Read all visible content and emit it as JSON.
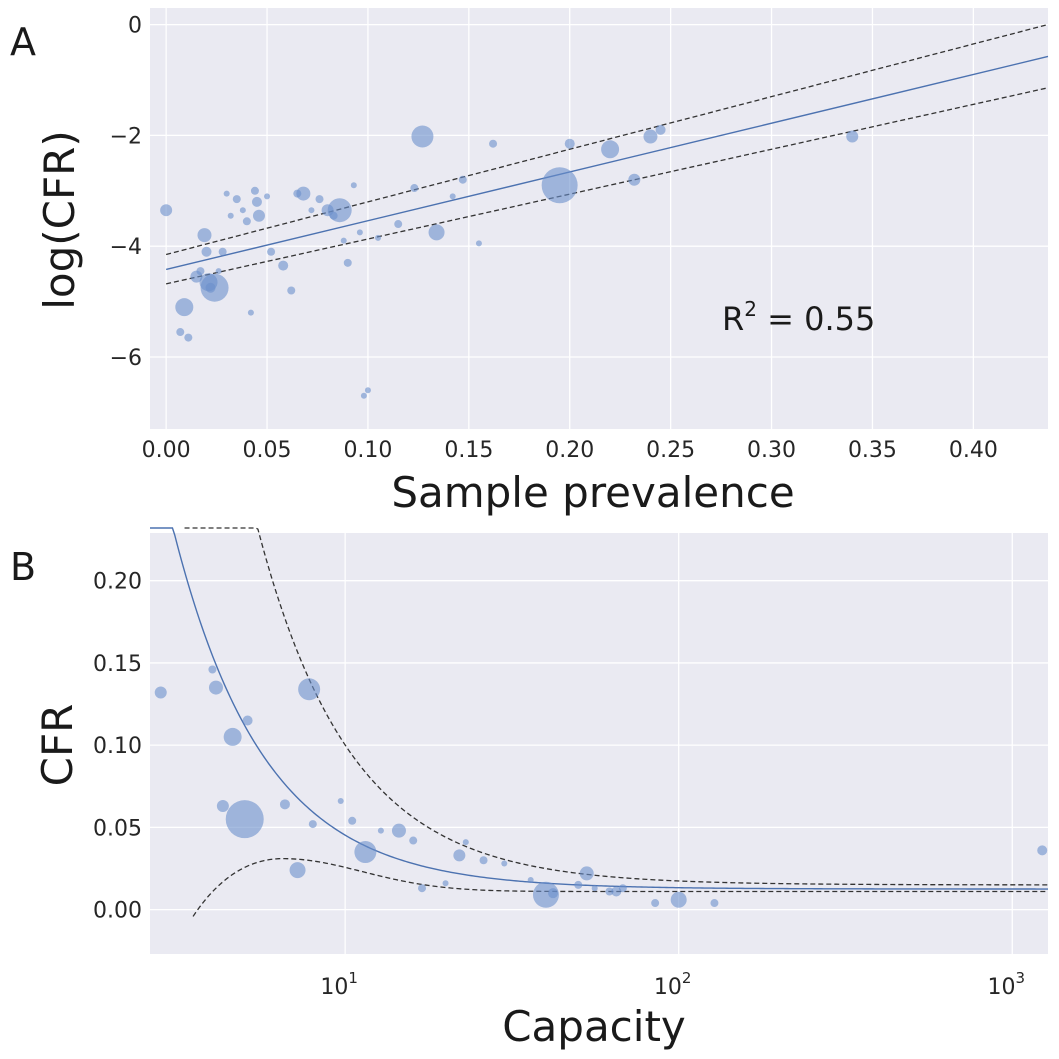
{
  "chart_data": [
    {
      "type": "scatter",
      "panel_label": "A",
      "xlabel": "Sample prevalence",
      "ylabel": "log(CFR)",
      "xlim": [
        -0.008,
        0.437
      ],
      "ylim": [
        -7.3,
        0.3
      ],
      "xticks": [
        0.0,
        0.05,
        0.1,
        0.15,
        0.2,
        0.25,
        0.3,
        0.35,
        0.4
      ],
      "xtick_labels": [
        "0.00",
        "0.05",
        "0.10",
        "0.15",
        "0.20",
        "0.25",
        "0.30",
        "0.35",
        "0.40"
      ],
      "yticks": [
        0,
        -2,
        -4,
        -6
      ],
      "ytick_labels": [
        "0",
        "−2",
        "−4",
        "−6"
      ],
      "annotation": {
        "prefix": "R",
        "sup": "2",
        "suffix": " = 0.55"
      },
      "fit": {
        "intercept": -4.42,
        "slope": 8.8
      },
      "ci_upper": {
        "intercept": -4.15,
        "slope": 9.5
      },
      "ci_lower": {
        "intercept": -4.68,
        "slope": 8.1
      },
      "points": [
        [
          0.0,
          -3.35,
          6
        ],
        [
          0.009,
          -5.1,
          9
        ],
        [
          0.007,
          -5.55,
          4
        ],
        [
          0.011,
          -5.65,
          4
        ],
        [
          0.015,
          -4.55,
          6
        ],
        [
          0.017,
          -4.45,
          4
        ],
        [
          0.019,
          -3.8,
          7
        ],
        [
          0.02,
          -4.1,
          5
        ],
        [
          0.021,
          -4.65,
          9
        ],
        [
          0.022,
          -4.75,
          5
        ],
        [
          0.024,
          -4.75,
          14
        ],
        [
          0.026,
          -4.45,
          3
        ],
        [
          0.028,
          -4.1,
          4
        ],
        [
          0.03,
          -3.05,
          3
        ],
        [
          0.032,
          -3.45,
          3
        ],
        [
          0.035,
          -3.15,
          4
        ],
        [
          0.038,
          -3.35,
          3
        ],
        [
          0.04,
          -3.55,
          4
        ],
        [
          0.042,
          -5.2,
          3
        ],
        [
          0.044,
          -3.0,
          4
        ],
        [
          0.045,
          -3.2,
          5
        ],
        [
          0.046,
          -3.45,
          6
        ],
        [
          0.05,
          -3.1,
          3
        ],
        [
          0.052,
          -4.1,
          4
        ],
        [
          0.058,
          -4.35,
          5
        ],
        [
          0.062,
          -4.8,
          4
        ],
        [
          0.065,
          -3.05,
          4
        ],
        [
          0.068,
          -3.05,
          7
        ],
        [
          0.072,
          -3.35,
          3
        ],
        [
          0.076,
          -3.15,
          4
        ],
        [
          0.08,
          -3.35,
          6
        ],
        [
          0.083,
          -3.45,
          4
        ],
        [
          0.086,
          -3.35,
          12
        ],
        [
          0.088,
          -3.9,
          3
        ],
        [
          0.09,
          -4.3,
          4
        ],
        [
          0.093,
          -2.9,
          3
        ],
        [
          0.096,
          -3.75,
          3
        ],
        [
          0.098,
          -6.7,
          3
        ],
        [
          0.1,
          -6.6,
          3
        ],
        [
          0.105,
          -3.85,
          3
        ],
        [
          0.115,
          -3.6,
          4
        ],
        [
          0.123,
          -2.95,
          4
        ],
        [
          0.127,
          -2.02,
          11
        ],
        [
          0.134,
          -3.75,
          8
        ],
        [
          0.142,
          -3.1,
          3
        ],
        [
          0.147,
          -2.8,
          4
        ],
        [
          0.155,
          -3.95,
          3
        ],
        [
          0.162,
          -2.15,
          4
        ],
        [
          0.195,
          -2.9,
          18
        ],
        [
          0.2,
          -2.15,
          5
        ],
        [
          0.22,
          -2.25,
          9
        ],
        [
          0.232,
          -2.8,
          6
        ],
        [
          0.24,
          -2.02,
          7
        ],
        [
          0.245,
          -1.9,
          5
        ],
        [
          0.34,
          -2.02,
          6
        ]
      ]
    },
    {
      "type": "scatter",
      "panel_label": "B",
      "xlabel": "Capacity",
      "ylabel": "CFR",
      "xscale": "log",
      "xlim": [
        2.6,
        1280
      ],
      "ylim": [
        -0.027,
        0.229
      ],
      "xticks": [
        10,
        100,
        1000
      ],
      "xtick_base": [
        "10",
        "10",
        "10"
      ],
      "xtick_exp": [
        "1",
        "2",
        "3"
      ],
      "yticks": [
        0.0,
        0.05,
        0.1,
        0.15,
        0.2
      ],
      "ytick_labels": [
        "0.00",
        "0.05",
        "0.10",
        "0.15",
        "0.20"
      ],
      "fit": {
        "a": 0.0125,
        "b": 0.225,
        "p": 1.6
      },
      "ci_upper": {
        "a": 0.015,
        "b": 0.55,
        "p": 1.55
      },
      "ci_lower_params": {
        "a": 0.011,
        "b": 0.02,
        "c": 0.014
      },
      "points": [
        [
          2.8,
          0.132,
          6
        ],
        [
          4.0,
          0.146,
          4
        ],
        [
          4.1,
          0.135,
          7
        ],
        [
          4.3,
          0.063,
          6
        ],
        [
          4.6,
          0.105,
          9
        ],
        [
          5.0,
          0.055,
          19
        ],
        [
          5.1,
          0.115,
          5
        ],
        [
          6.6,
          0.064,
          5
        ],
        [
          7.2,
          0.024,
          8
        ],
        [
          7.8,
          0.134,
          11
        ],
        [
          8.0,
          0.052,
          4
        ],
        [
          9.7,
          0.066,
          3
        ],
        [
          10.5,
          0.054,
          4
        ],
        [
          11.5,
          0.035,
          11
        ],
        [
          12.8,
          0.048,
          3
        ],
        [
          14.5,
          0.048,
          7
        ],
        [
          16.0,
          0.042,
          4
        ],
        [
          17.0,
          0.013,
          4
        ],
        [
          20.0,
          0.016,
          3
        ],
        [
          22.0,
          0.033,
          6
        ],
        [
          23.0,
          0.041,
          3
        ],
        [
          26.0,
          0.03,
          4
        ],
        [
          30.0,
          0.028,
          3
        ],
        [
          36.0,
          0.018,
          3
        ],
        [
          40.0,
          0.009,
          13
        ],
        [
          42.0,
          0.01,
          5
        ],
        [
          50.0,
          0.015,
          4
        ],
        [
          53.0,
          0.022,
          7
        ],
        [
          56.0,
          0.013,
          3
        ],
        [
          62.0,
          0.011,
          4
        ],
        [
          65.0,
          0.011,
          5
        ],
        [
          68.0,
          0.013,
          4
        ],
        [
          85.0,
          0.004,
          4
        ],
        [
          100.0,
          0.006,
          8
        ],
        [
          128.0,
          0.004,
          4
        ],
        [
          1230.0,
          0.036,
          5
        ]
      ]
    }
  ]
}
